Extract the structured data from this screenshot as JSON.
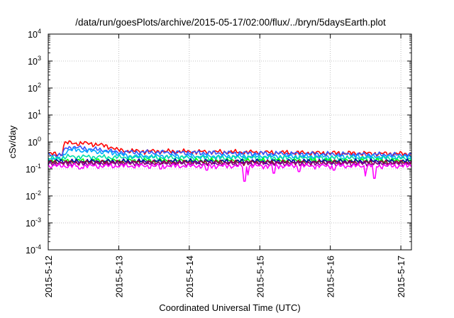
{
  "chart_data": {
    "type": "line",
    "title": "/data/run/goesPlots/archive/2015-05-17/02:00/flux/../bryn/5daysEarth.plot",
    "xlabel": "Coordinated Universal Time (UTC)",
    "ylabel": "cSv/day",
    "y_scale": "log",
    "ylim_exp": [
      -4,
      4
    ],
    "ytick_labels": [
      {
        "base": "10",
        "exp": "-4"
      },
      {
        "base": "10",
        "exp": "-3"
      },
      {
        "base": "10",
        "exp": "-2"
      },
      {
        "base": "10",
        "exp": "-1"
      },
      {
        "base": "10",
        "exp": "0"
      },
      {
        "base": "10",
        "exp": "1"
      },
      {
        "base": "10",
        "exp": "2"
      },
      {
        "base": "10",
        "exp": "3"
      },
      {
        "base": "10",
        "exp": "4"
      }
    ],
    "xlim_days": [
      0,
      5.15
    ],
    "xtick_labels": [
      "2015-5-12",
      "2015-5-13",
      "2015-5-14",
      "2015-5-15",
      "2015-5-16",
      "2015-5-17"
    ],
    "grid": true,
    "legend": "none",
    "series": [
      {
        "color": "#ff0000",
        "base": 0.36,
        "step_end": 1.0,
        "anchors": [
          [
            0,
            0.36
          ],
          [
            0.2,
            0.36
          ],
          [
            0.22,
            0.85
          ],
          [
            0.27,
            0.95
          ],
          [
            0.35,
            0.9
          ],
          [
            0.5,
            0.9
          ],
          [
            0.65,
            0.85
          ],
          [
            0.8,
            0.72
          ],
          [
            0.92,
            0.62
          ],
          [
            0.98,
            0.5
          ],
          [
            1.2,
            0.46
          ],
          [
            5.15,
            0.36
          ]
        ]
      },
      {
        "color": "#3355ff",
        "base": 0.34,
        "step_end": 1.0,
        "anchors": [
          [
            0,
            0.33
          ],
          [
            0.2,
            0.33
          ],
          [
            0.25,
            0.6
          ],
          [
            0.35,
            0.65
          ],
          [
            0.5,
            0.58
          ],
          [
            0.7,
            0.52
          ],
          [
            0.85,
            0.48
          ],
          [
            0.95,
            0.42
          ],
          [
            1.2,
            0.42
          ],
          [
            5.15,
            0.33
          ]
        ]
      },
      {
        "color": "#00a8ff",
        "base": 0.3,
        "anchors": [
          [
            0,
            0.22
          ],
          [
            0.2,
            0.24
          ],
          [
            0.25,
            0.45
          ],
          [
            0.3,
            0.52
          ],
          [
            0.5,
            0.48
          ],
          [
            0.7,
            0.44
          ],
          [
            0.95,
            0.4
          ],
          [
            1.1,
            0.3
          ],
          [
            5.15,
            0.28
          ]
        ]
      },
      {
        "color": "#00ddaa",
        "base": 0.24,
        "anchors": [
          [
            0,
            0.24
          ],
          [
            0.22,
            0.26
          ],
          [
            0.3,
            0.29
          ],
          [
            0.95,
            0.27
          ],
          [
            5.15,
            0.25
          ]
        ]
      },
      {
        "color": "#00ff00",
        "base": 0.2,
        "anchors": [
          [
            0,
            0.2
          ],
          [
            5.15,
            0.2
          ]
        ]
      },
      {
        "color": "#0000aa",
        "base": 0.19,
        "anchors": [
          [
            0,
            0.19
          ],
          [
            5.15,
            0.19
          ]
        ]
      },
      {
        "color": "#990033",
        "base": 0.175,
        "anchors": [
          [
            0,
            0.175
          ],
          [
            5.15,
            0.175
          ]
        ]
      },
      {
        "color": "#880088",
        "base": 0.16,
        "anchors": [
          [
            0,
            0.16
          ],
          [
            5.15,
            0.16
          ]
        ]
      },
      {
        "color": "#ff00ff",
        "base": 0.13,
        "anchors": [
          [
            0,
            0.13
          ],
          [
            5.15,
            0.13
          ]
        ],
        "dips": [
          [
            2.78,
            0.035
          ],
          [
            2.83,
            0.06
          ],
          [
            3.2,
            0.07
          ],
          [
            3.55,
            0.08
          ],
          [
            4.5,
            0.055
          ],
          [
            4.62,
            0.045
          ],
          [
            0.45,
            0.1
          ],
          [
            1.6,
            0.1
          ],
          [
            2.25,
            0.09
          ],
          [
            4.05,
            0.09
          ]
        ]
      }
    ]
  }
}
